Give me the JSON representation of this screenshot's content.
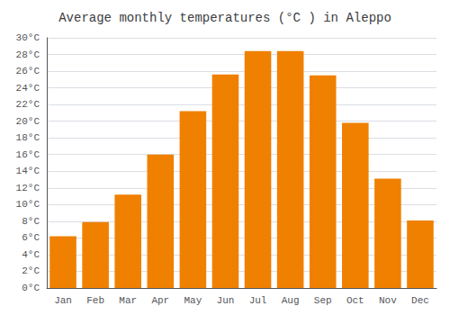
{
  "chart_data": {
    "type": "bar",
    "title": "Average monthly temperatures (°C ) in Aleppo",
    "categories": [
      "Jan",
      "Feb",
      "Mar",
      "Apr",
      "May",
      "Jun",
      "Jul",
      "Aug",
      "Sep",
      "Oct",
      "Nov",
      "Dec"
    ],
    "values": [
      6.2,
      7.9,
      11.2,
      16.0,
      21.2,
      25.6,
      28.4,
      28.4,
      25.5,
      19.8,
      13.1,
      8.1
    ],
    "color": "#F08000",
    "ylim": [
      0,
      30
    ],
    "yticks": [
      {
        "value": 0,
        "label": "0°C"
      },
      {
        "value": 2,
        "label": "2°C"
      },
      {
        "value": 4,
        "label": "4°C"
      },
      {
        "value": 6,
        "label": "6°C"
      },
      {
        "value": 8,
        "label": "8°C"
      },
      {
        "value": 10,
        "label": "10°C"
      },
      {
        "value": 12,
        "label": "12°C"
      },
      {
        "value": 14,
        "label": "14°C"
      },
      {
        "value": 16,
        "label": "16°C"
      },
      {
        "value": 18,
        "label": "18°C"
      },
      {
        "value": 20,
        "label": "20°C"
      },
      {
        "value": 22,
        "label": "22°C"
      },
      {
        "value": 24,
        "label": "24°C"
      },
      {
        "value": 26,
        "label": "26°C"
      },
      {
        "value": 28,
        "label": "28°C"
      },
      {
        "value": 30,
        "label": "30°C"
      }
    ],
    "grid": true
  }
}
